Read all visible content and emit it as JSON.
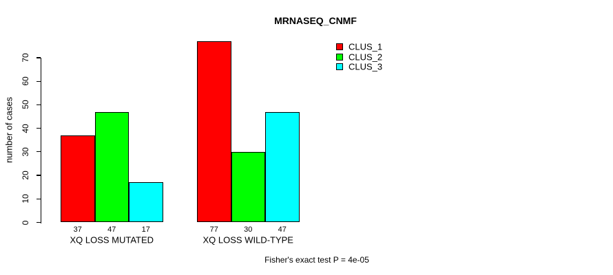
{
  "chart_data": {
    "type": "bar",
    "title": "MRNASEQ_CNMF",
    "ylabel": "number of cases",
    "xlabel": "",
    "ylim": [
      0,
      70
    ],
    "yticks": [
      0,
      10,
      20,
      30,
      40,
      50,
      60,
      70
    ],
    "grid": false,
    "categories": [
      "XQ LOSS MUTATED",
      "XQ LOSS WILD-TYPE"
    ],
    "series": [
      {
        "name": "CLUS_1",
        "color": "#ff0000",
        "values": [
          37,
          77
        ]
      },
      {
        "name": "CLUS_2",
        "color": "#00ff00",
        "values": [
          47,
          30
        ]
      },
      {
        "name": "CLUS_3",
        "color": "#00ffff",
        "values": [
          17,
          47
        ]
      }
    ],
    "bar_value_labels": [
      [
        37,
        47,
        17
      ],
      [
        77,
        30,
        47
      ]
    ],
    "legend": {
      "position": "top-right",
      "entries": [
        "CLUS_1",
        "CLUS_2",
        "CLUS_3"
      ],
      "colors": [
        "#ff0000",
        "#00ff00",
        "#00ffff"
      ]
    },
    "annotation": "Fisher's exact test P = 4e-05",
    "bar_border_color": "#000000",
    "axis_color": "#000000",
    "text_color": "#000000",
    "background_color": "#ffffff"
  }
}
